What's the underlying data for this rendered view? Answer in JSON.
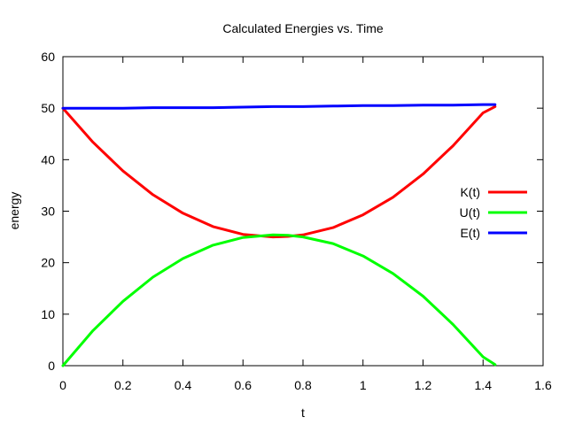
{
  "chart_data": {
    "type": "line",
    "title": "Calculated Energies vs. Time",
    "xlabel": "t",
    "ylabel": "energy",
    "xlim": [
      0,
      1.6
    ],
    "ylim": [
      0,
      60
    ],
    "xticks": [
      0,
      0.2,
      0.4,
      0.6,
      0.8,
      1,
      1.2,
      1.4,
      1.6
    ],
    "xtick_labels": [
      "0",
      "0.2",
      "0.4",
      "0.6",
      "0.8",
      "1",
      "1.2",
      "1.4",
      "1.6"
    ],
    "yticks": [
      0,
      10,
      20,
      30,
      40,
      50,
      60
    ],
    "ytick_labels": [
      "0",
      "10",
      "20",
      "30",
      "40",
      "50",
      "60"
    ],
    "grid": false,
    "legend_position": "right",
    "x": [
      0,
      0.1,
      0.2,
      0.3,
      0.4,
      0.5,
      0.6,
      0.7,
      0.75,
      0.8,
      0.9,
      1.0,
      1.1,
      1.2,
      1.3,
      1.4,
      1.44
    ],
    "series": [
      {
        "name": "K(t)",
        "color": "#ff0000",
        "values": [
          50.0,
          43.4,
          37.8,
          33.2,
          29.6,
          27.0,
          25.5,
          25.0,
          25.1,
          25.4,
          26.8,
          29.3,
          32.7,
          37.2,
          42.7,
          49.1,
          50.3
        ]
      },
      {
        "name": "U(t)",
        "color": "#00ff00",
        "values": [
          0.0,
          6.8,
          12.5,
          17.2,
          20.8,
          23.4,
          24.9,
          25.4,
          25.3,
          25.0,
          23.7,
          21.3,
          17.9,
          13.5,
          8.0,
          1.7,
          0.2
        ]
      },
      {
        "name": "E(t)",
        "color": "#0000ff",
        "values": [
          50.0,
          50.0,
          50.0,
          50.1,
          50.1,
          50.1,
          50.2,
          50.3,
          50.3,
          50.3,
          50.4,
          50.5,
          50.5,
          50.6,
          50.6,
          50.7,
          50.7
        ]
      }
    ]
  }
}
